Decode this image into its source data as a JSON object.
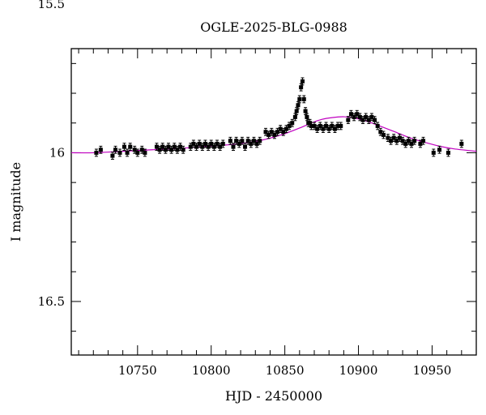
{
  "chart_data": {
    "type": "scatter",
    "title": "OGLE-2025-BLG-0988",
    "xlabel": "HJD - 2450000",
    "ylabel": "I magnitude",
    "xlim": [
      10705,
      10980
    ],
    "ylim": [
      16.68,
      15.65
    ],
    "y_inverted": true,
    "xticks": [
      10750,
      10800,
      10850,
      10900,
      10950
    ],
    "xtick_labels": [
      "10750",
      "10800",
      "10850",
      "10900",
      "10950"
    ],
    "yticks": [
      15.5,
      16,
      16.5
    ],
    "ytick_labels": [
      "15.5",
      "16",
      "16.5"
    ],
    "grid": false,
    "legend": "none",
    "colors": {
      "points": "#000000",
      "model": "#c000c0",
      "frame": "#000000",
      "background": "#ffffff"
    },
    "series": [
      {
        "kind": "points-with-errorbars",
        "x": [
          10722,
          10725,
          10733,
          10735,
          10738,
          10741,
          10743,
          10745,
          10748,
          10750,
          10753,
          10755,
          10763,
          10765,
          10767,
          10769,
          10771,
          10773,
          10775,
          10777,
          10779,
          10781,
          10786,
          10788,
          10790,
          10792,
          10794,
          10796,
          10798,
          10800,
          10802,
          10804,
          10806,
          10808,
          10813,
          10815,
          10817,
          10819,
          10821,
          10823,
          10825,
          10827,
          10829,
          10831,
          10833,
          10837,
          10839,
          10841,
          10843,
          10845,
          10847,
          10849,
          10851,
          10853,
          10855,
          10857,
          10858,
          10859,
          10860,
          10861,
          10862,
          10863,
          10864,
          10865,
          10866,
          10867,
          10868,
          10870,
          10872,
          10874,
          10876,
          10878,
          10880,
          10882,
          10884,
          10886,
          10888,
          10893,
          10895,
          10897,
          10899,
          10901,
          10903,
          10905,
          10907,
          10909,
          10911,
          10913,
          10915,
          10917,
          10920,
          10922,
          10924,
          10926,
          10928,
          10930,
          10932,
          10934,
          10936,
          10938,
          10942,
          10944,
          10951,
          10955,
          10961,
          10970
        ],
        "y": [
          16.0,
          15.99,
          16.01,
          15.99,
          16.0,
          15.98,
          16.0,
          15.98,
          15.99,
          16.0,
          15.99,
          16.0,
          15.98,
          15.99,
          15.98,
          15.99,
          15.98,
          15.99,
          15.98,
          15.99,
          15.98,
          15.99,
          15.98,
          15.97,
          15.98,
          15.97,
          15.98,
          15.97,
          15.98,
          15.97,
          15.98,
          15.97,
          15.98,
          15.97,
          15.96,
          15.98,
          15.96,
          15.97,
          15.96,
          15.98,
          15.96,
          15.97,
          15.96,
          15.97,
          15.96,
          15.93,
          15.94,
          15.93,
          15.94,
          15.93,
          15.92,
          15.93,
          15.92,
          15.91,
          15.9,
          15.88,
          15.86,
          15.84,
          15.82,
          15.78,
          15.76,
          15.82,
          15.86,
          15.88,
          15.9,
          15.9,
          15.91,
          15.91,
          15.92,
          15.91,
          15.92,
          15.91,
          15.92,
          15.91,
          15.92,
          15.91,
          15.91,
          15.89,
          15.87,
          15.88,
          15.87,
          15.88,
          15.89,
          15.88,
          15.89,
          15.88,
          15.89,
          15.91,
          15.93,
          15.94,
          15.95,
          15.96,
          15.95,
          15.96,
          15.95,
          15.96,
          15.97,
          15.96,
          15.97,
          15.96,
          15.97,
          15.96,
          16.0,
          15.99,
          16.0,
          15.97
        ],
        "error": 0.012
      },
      {
        "kind": "model-curve",
        "x": [
          10705,
          10720,
          10740,
          10760,
          10780,
          10800,
          10815,
          10830,
          10840,
          10850,
          10860,
          10868,
          10875,
          10882,
          10890,
          10897,
          10905,
          10915,
          10925,
          10935,
          10945,
          10955,
          10965,
          10980
        ],
        "y": [
          16.0,
          16.0,
          15.995,
          15.99,
          15.985,
          15.977,
          15.972,
          15.962,
          15.951,
          15.936,
          15.917,
          15.9,
          15.888,
          15.882,
          15.879,
          15.883,
          15.893,
          15.911,
          15.93,
          15.95,
          15.965,
          15.978,
          15.987,
          15.995
        ]
      }
    ]
  }
}
